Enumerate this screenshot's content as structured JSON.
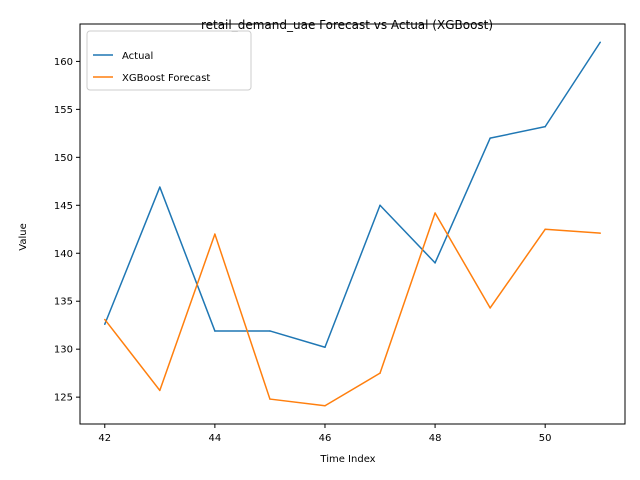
{
  "chart_data": {
    "type": "line",
    "title": "retail_demand_uae Forecast vs Actual (XGBoost)",
    "xlabel": "Time Index",
    "ylabel": "Value",
    "xlim": [
      41.55,
      51.45
    ],
    "ylim": [
      122.2,
      163.9
    ],
    "xticks": [
      42,
      44,
      46,
      48,
      50
    ],
    "yticks": [
      125,
      130,
      135,
      140,
      145,
      150,
      155,
      160
    ],
    "x": [
      42,
      43,
      44,
      45,
      46,
      47,
      48,
      49,
      50,
      51
    ],
    "series": [
      {
        "name": "Actual",
        "color": "#1f77b4",
        "values": [
          132.6,
          146.9,
          131.9,
          131.9,
          130.2,
          145.0,
          139.0,
          152.0,
          153.2,
          162.0
        ]
      },
      {
        "name": "XGBoost Forecast",
        "color": "#ff7f0e",
        "values": [
          133.1,
          125.7,
          142.0,
          124.8,
          124.1,
          127.5,
          144.2,
          134.3,
          142.5,
          142.1
        ]
      }
    ],
    "legend_position": "top-left",
    "grid": false
  }
}
